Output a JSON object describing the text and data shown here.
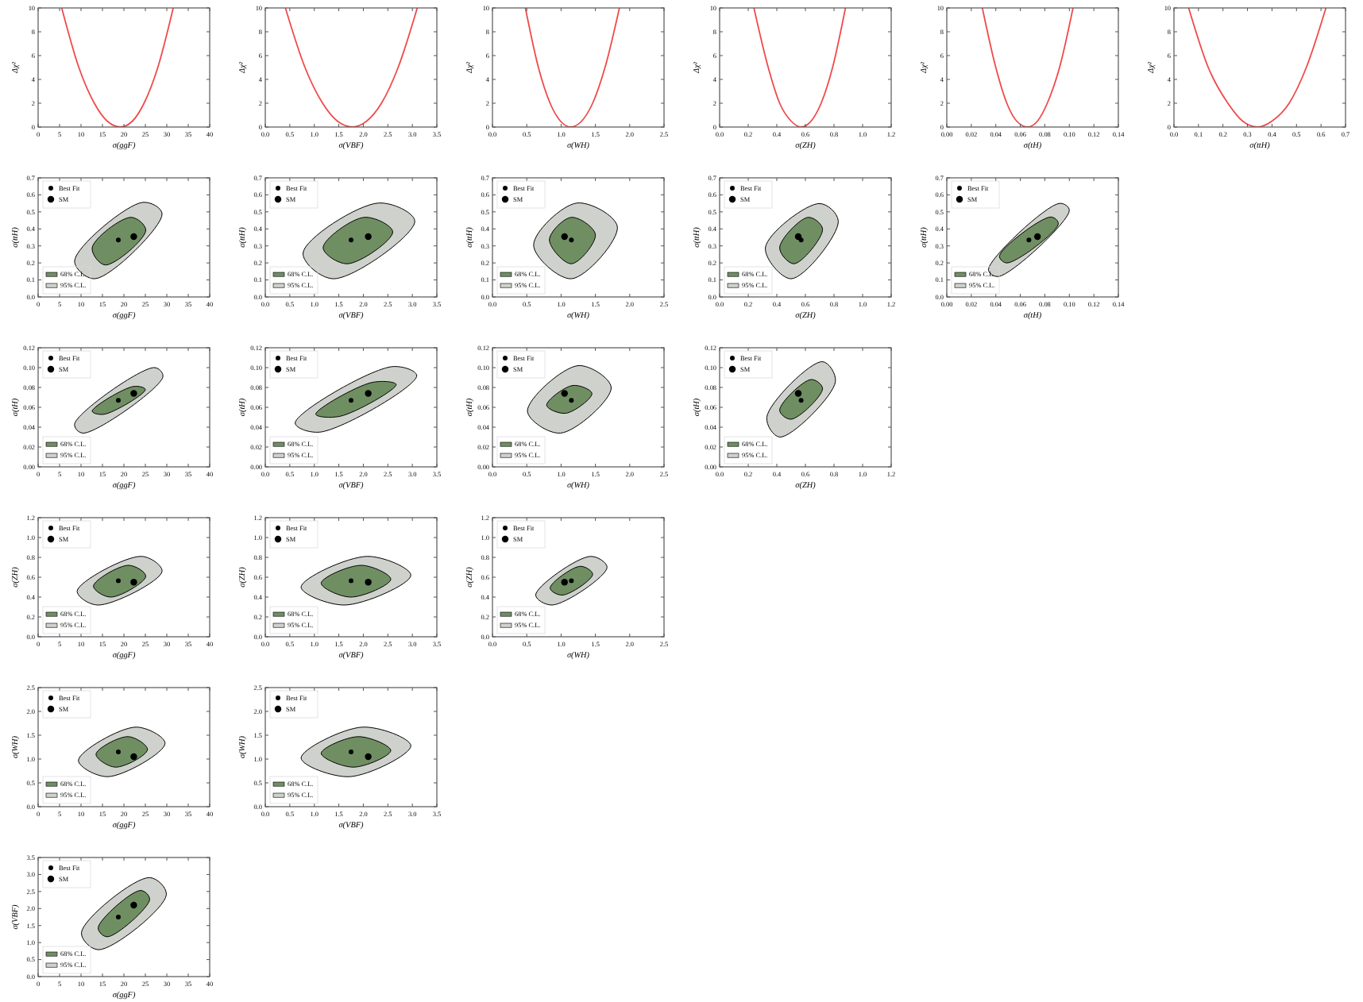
{
  "chart_data": [
    {
      "type": "line",
      "xlabel": "σ(ggF)",
      "ylabel": "Δχ²",
      "xlim": [
        0,
        40
      ],
      "ylim": [
        0,
        10
      ],
      "xticks": [
        0,
        5,
        10,
        15,
        20,
        25,
        30,
        35,
        40
      ],
      "yticks": [
        0,
        2,
        4,
        6,
        8,
        10
      ],
      "series": [
        {
          "color": "#f04a4a",
          "x": [
            5.5,
            9.5,
            13.1,
            16.1,
            19.2,
            22.0,
            24.7,
            27.9,
            31.5
          ],
          "values": [
            10,
            5,
            2,
            0.5,
            0,
            0.5,
            2,
            5,
            10
          ]
        }
      ]
    },
    {
      "type": "line",
      "xlabel": "σ(VBF)",
      "ylabel": "Δχ²",
      "xlim": [
        0,
        3.5
      ],
      "ylim": [
        0,
        10
      ],
      "xticks": [
        {
          "value": 0,
          "label": "0.0"
        },
        {
          "value": 0.5,
          "label": "0.5"
        },
        {
          "value": 1,
          "label": "1.0"
        },
        {
          "value": 1.5,
          "label": "1.5"
        },
        {
          "value": 2,
          "label": "2.0"
        },
        {
          "value": 2.5,
          "label": "2.5"
        },
        {
          "value": 3,
          "label": "3.0"
        },
        {
          "value": 3.5,
          "label": "3.5"
        }
      ],
      "yticks": [
        0,
        2,
        4,
        6,
        8,
        10
      ],
      "series": [
        {
          "color": "#f04a4a",
          "x": [
            0.41,
            0.81,
            1.17,
            1.47,
            1.78,
            2.07,
            2.37,
            2.71,
            3.1
          ],
          "values": [
            10,
            5,
            2,
            0.5,
            0,
            0.5,
            2,
            5,
            10
          ]
        }
      ]
    },
    {
      "type": "line",
      "xlabel": "σ(WH)",
      "ylabel": "Δχ²",
      "xlim": [
        0,
        2.5
      ],
      "ylim": [
        0,
        10
      ],
      "xticks": [
        {
          "value": 0,
          "label": "0.0"
        },
        {
          "value": 0.5,
          "label": "0.5"
        },
        {
          "value": 1,
          "label": "1.0"
        },
        {
          "value": 1.5,
          "label": "1.5"
        },
        {
          "value": 2,
          "label": "2.0"
        },
        {
          "value": 2.5,
          "label": "2.5"
        }
      ],
      "yticks": [
        0,
        2,
        4,
        6,
        8,
        10
      ],
      "series": [
        {
          "color": "#f04a4a",
          "x": [
            0.48,
            0.67,
            0.84,
            0.99,
            1.14,
            1.3,
            1.46,
            1.64,
            1.85
          ],
          "values": [
            10,
            5,
            2,
            0.5,
            0,
            0.5,
            2,
            5,
            10
          ]
        }
      ]
    },
    {
      "type": "line",
      "xlabel": "σ(ZH)",
      "ylabel": "Δχ²",
      "xlim": [
        0,
        1.2
      ],
      "ylim": [
        0,
        10
      ],
      "xticks": [
        {
          "value": 0,
          "label": "0.0"
        },
        {
          "value": 0.2,
          "label": "0.2"
        },
        {
          "value": 0.4,
          "label": "0.4"
        },
        {
          "value": 0.6,
          "label": "0.6"
        },
        {
          "value": 0.8,
          "label": "0.8"
        },
        {
          "value": 1,
          "label": "1.0"
        },
        {
          "value": 1.2,
          "label": "1.2"
        }
      ],
      "yticks": [
        0,
        2,
        4,
        6,
        8,
        10
      ],
      "series": [
        {
          "color": "#f04a4a",
          "x": [
            0.24,
            0.34,
            0.42,
            0.5,
            0.57,
            0.64,
            0.71,
            0.79,
            0.88
          ],
          "values": [
            10,
            5,
            2,
            0.5,
            0,
            0.5,
            2,
            5,
            10
          ]
        }
      ]
    },
    {
      "type": "line",
      "xlabel": "σ(tH)",
      "ylabel": "Δχ²",
      "xlim": [
        0,
        0.14
      ],
      "ylim": [
        0,
        10
      ],
      "xticks": [
        {
          "value": 0,
          "label": "0.00"
        },
        {
          "value": 0.02,
          "label": "0.02"
        },
        {
          "value": 0.04,
          "label": "0.04"
        },
        {
          "value": 0.06,
          "label": "0.06"
        },
        {
          "value": 0.08,
          "label": "0.08"
        },
        {
          "value": 0.1,
          "label": "0.10"
        },
        {
          "value": 0.12,
          "label": "0.12"
        },
        {
          "value": 0.14,
          "label": "0.14"
        }
      ],
      "yticks": [
        0,
        2,
        4,
        6,
        8,
        10
      ],
      "series": [
        {
          "color": "#f04a4a",
          "x": [
            0.029,
            0.04,
            0.049,
            0.057,
            0.066,
            0.074,
            0.082,
            0.092,
            0.103
          ],
          "values": [
            10,
            5,
            2,
            0.5,
            0,
            0.5,
            2,
            5,
            10
          ]
        }
      ]
    },
    {
      "type": "line",
      "xlabel": "σ(ttH)",
      "ylabel": "Δχ²",
      "xlim": [
        0,
        0.7
      ],
      "ylim": [
        0,
        10
      ],
      "xticks": [
        {
          "value": 0,
          "label": "0.0"
        },
        {
          "value": 0.1,
          "label": "0.1"
        },
        {
          "value": 0.2,
          "label": "0.2"
        },
        {
          "value": 0.3,
          "label": "0.3"
        },
        {
          "value": 0.4,
          "label": "0.4"
        },
        {
          "value": 0.5,
          "label": "0.5"
        },
        {
          "value": 0.6,
          "label": "0.6"
        },
        {
          "value": 0.7,
          "label": "0.7"
        }
      ],
      "yticks": [
        0,
        2,
        4,
        6,
        8,
        10
      ],
      "series": [
        {
          "color": "#f04a4a",
          "x": [
            0.06,
            0.14,
            0.22,
            0.28,
            0.34,
            0.4,
            0.47,
            0.54,
            0.62
          ],
          "values": [
            10,
            5,
            2,
            0.5,
            0,
            0.5,
            2,
            5,
            10
          ]
        }
      ]
    },
    {
      "type": "scatter",
      "xlabel": "σ(ggF)",
      "ylabel": "σ(ttH)",
      "xlim": [
        0,
        40
      ],
      "ylim": [
        0,
        0.7
      ],
      "xticks": [
        0,
        5,
        10,
        15,
        20,
        25,
        30,
        35,
        40
      ],
      "yticks": [
        {
          "value": 0,
          "label": "0.0"
        },
        {
          "value": 0.1,
          "label": "0.1"
        },
        {
          "value": 0.2,
          "label": "0.2"
        },
        {
          "value": 0.3,
          "label": "0.3"
        },
        {
          "value": 0.4,
          "label": "0.4"
        },
        {
          "value": 0.5,
          "label": "0.5"
        },
        {
          "value": 0.6,
          "label": "0.6"
        },
        {
          "value": 0.7,
          "label": "0.7"
        }
      ],
      "legend": "left",
      "series": [
        {
          "name": "95% C.L.",
          "type": "area",
          "color": "#cfd1cc",
          "x": [
            8.5,
            13.2,
            28.9,
            24.4
          ],
          "values": [
            0.21,
            0.107,
            0.49,
            0.556
          ]
        },
        {
          "name": "68% C.L.",
          "type": "area",
          "color": "#6f8f62",
          "x": [
            12.6,
            15.6,
            25.1,
            21.7
          ],
          "values": [
            0.289,
            0.188,
            0.392,
            0.468
          ]
        },
        {
          "name": "Best Fit",
          "color": "#000000",
          "x": [
            18.7
          ],
          "values": [
            0.335
          ]
        },
        {
          "name": "SM",
          "color": "#000000",
          "x": [
            22.3
          ],
          "values": [
            0.355
          ]
        }
      ]
    },
    {
      "type": "scatter",
      "xlabel": "σ(VBF)",
      "ylabel": "σ(ttH)",
      "xlim": [
        0,
        3.5
      ],
      "ylim": [
        0,
        0.7
      ],
      "xticks": [
        {
          "value": 0,
          "label": "0.0"
        },
        {
          "value": 0.5,
          "label": "0.5"
        },
        {
          "value": 1,
          "label": "1.0"
        },
        {
          "value": 1.5,
          "label": "1.5"
        },
        {
          "value": 2,
          "label": "2.0"
        },
        {
          "value": 2.5,
          "label": "2.5"
        },
        {
          "value": 3,
          "label": "3.0"
        },
        {
          "value": 3.5,
          "label": "3.5"
        }
      ],
      "yticks": [
        {
          "value": 0,
          "label": "0.0"
        },
        {
          "value": 0.1,
          "label": "0.1"
        },
        {
          "value": 0.2,
          "label": "0.2"
        },
        {
          "value": 0.3,
          "label": "0.3"
        },
        {
          "value": 0.4,
          "label": "0.4"
        },
        {
          "value": 0.5,
          "label": "0.5"
        },
        {
          "value": 0.6,
          "label": "0.6"
        },
        {
          "value": 0.7,
          "label": "0.7"
        }
      ],
      "legend": "left",
      "series": [
        {
          "name": "95% C.L.",
          "type": "area",
          "color": "#cfd1cc",
          "x": [
            0.77,
            1.38,
            3.05,
            2.31
          ],
          "values": [
            0.257,
            0.107,
            0.446,
            0.552
          ]
        },
        {
          "name": "68% C.L.",
          "type": "area",
          "color": "#6f8f62",
          "x": [
            1.18,
            1.67,
            2.6,
            2.02
          ],
          "values": [
            0.289,
            0.195,
            0.383,
            0.468
          ]
        },
        {
          "name": "Best Fit",
          "color": "#000000",
          "x": [
            1.75
          ],
          "values": [
            0.335
          ]
        },
        {
          "name": "SM",
          "color": "#000000",
          "x": [
            2.1
          ],
          "values": [
            0.355
          ]
        }
      ]
    },
    {
      "type": "scatter",
      "xlabel": "σ(WH)",
      "ylabel": "σ(ttH)",
      "xlim": [
        0,
        2.5
      ],
      "ylim": [
        0,
        0.7
      ],
      "xticks": [
        {
          "value": 0,
          "label": "0.0"
        },
        {
          "value": 0.5,
          "label": "0.5"
        },
        {
          "value": 1,
          "label": "1.0"
        },
        {
          "value": 1.5,
          "label": "1.5"
        },
        {
          "value": 2,
          "label": "2.0"
        },
        {
          "value": 2.5,
          "label": "2.5"
        }
      ],
      "yticks": [
        {
          "value": 0,
          "label": "0.0"
        },
        {
          "value": 0.1,
          "label": "0.1"
        },
        {
          "value": 0.2,
          "label": "0.2"
        },
        {
          "value": 0.3,
          "label": "0.3"
        },
        {
          "value": 0.4,
          "label": "0.4"
        },
        {
          "value": 0.5,
          "label": "0.5"
        },
        {
          "value": 0.6,
          "label": "0.6"
        },
        {
          "value": 0.7,
          "label": "0.7"
        }
      ],
      "legend": "left",
      "series": [
        {
          "name": "95% C.L.",
          "type": "area",
          "color": "#cfd1cc",
          "x": [
            0.6,
            1.15,
            1.82,
            1.23
          ],
          "values": [
            0.304,
            0.107,
            0.414,
            0.552
          ]
        },
        {
          "name": "68% C.L.",
          "type": "area",
          "color": "#6f8f62",
          "x": [
            0.83,
            1.15,
            1.5,
            1.15
          ],
          "values": [
            0.336,
            0.195,
            0.367,
            0.468
          ]
        },
        {
          "name": "Best Fit",
          "color": "#000000",
          "x": [
            1.15
          ],
          "values": [
            0.335
          ]
        },
        {
          "name": "SM",
          "color": "#000000",
          "x": [
            1.05
          ],
          "values": [
            0.355
          ]
        }
      ]
    },
    {
      "type": "scatter",
      "xlabel": "σ(ZH)",
      "ylabel": "σ(ttH)",
      "xlim": [
        0,
        1.2
      ],
      "ylim": [
        0,
        0.7
      ],
      "xticks": [
        {
          "value": 0,
          "label": "0.0"
        },
        {
          "value": 0.2,
          "label": "0.2"
        },
        {
          "value": 0.4,
          "label": "0.4"
        },
        {
          "value": 0.6,
          "label": "0.6"
        },
        {
          "value": 0.8,
          "label": "0.8"
        },
        {
          "value": 1,
          "label": "1.0"
        },
        {
          "value": 1.2,
          "label": "1.2"
        }
      ],
      "yticks": [
        {
          "value": 0,
          "label": "0.0"
        },
        {
          "value": 0.1,
          "label": "0.1"
        },
        {
          "value": 0.2,
          "label": "0.2"
        },
        {
          "value": 0.3,
          "label": "0.3"
        },
        {
          "value": 0.4,
          "label": "0.4"
        },
        {
          "value": 0.5,
          "label": "0.5"
        },
        {
          "value": 0.6,
          "label": "0.6"
        },
        {
          "value": 0.7,
          "label": "0.7"
        }
      ],
      "legend": "left",
      "series": [
        {
          "name": "95% C.L.",
          "type": "area",
          "color": "#cfd1cc",
          "x": [
            0.32,
            0.5,
            0.83,
            0.7
          ],
          "values": [
            0.289,
            0.107,
            0.446,
            0.549
          ]
        },
        {
          "name": "68% C.L.",
          "type": "area",
          "color": "#6f8f62",
          "x": [
            0.42,
            0.52,
            0.72,
            0.62
          ],
          "values": [
            0.289,
            0.195,
            0.399,
            0.468
          ]
        },
        {
          "name": "Best Fit",
          "color": "#000000",
          "x": [
            0.57
          ],
          "values": [
            0.335
          ]
        },
        {
          "name": "SM",
          "color": "#000000",
          "x": [
            0.55
          ],
          "values": [
            0.355
          ]
        }
      ]
    },
    {
      "type": "scatter",
      "xlabel": "σ(tH)",
      "ylabel": "σ(ttH)",
      "xlim": [
        0,
        0.14
      ],
      "ylim": [
        0,
        0.7
      ],
      "xticks": [
        {
          "value": 0,
          "label": "0.00"
        },
        {
          "value": 0.02,
          "label": "0.02"
        },
        {
          "value": 0.04,
          "label": "0.04"
        },
        {
          "value": 0.06,
          "label": "0.06"
        },
        {
          "value": 0.08,
          "label": "0.08"
        },
        {
          "value": 0.1,
          "label": "0.10"
        },
        {
          "value": 0.12,
          "label": "0.12"
        },
        {
          "value": 0.14,
          "label": "0.14"
        }
      ],
      "yticks": [
        {
          "value": 0,
          "label": "0.0"
        },
        {
          "value": 0.1,
          "label": "0.1"
        },
        {
          "value": 0.2,
          "label": "0.2"
        },
        {
          "value": 0.3,
          "label": "0.3"
        },
        {
          "value": 0.4,
          "label": "0.4"
        },
        {
          "value": 0.5,
          "label": "0.5"
        },
        {
          "value": 0.6,
          "label": "0.6"
        },
        {
          "value": 0.7,
          "label": "0.7"
        }
      ],
      "legend": "left",
      "series": [
        {
          "name": "95% C.L.",
          "type": "area",
          "color": "#cfd1cc",
          "x": [
            0.034,
            0.042,
            0.1,
            0.092
          ],
          "values": [
            0.16,
            0.12,
            0.51,
            0.55
          ]
        },
        {
          "name": "68% C.L.",
          "type": "area",
          "color": "#6f8f62",
          "x": [
            0.043,
            0.049,
            0.091,
            0.085
          ],
          "values": [
            0.24,
            0.2,
            0.43,
            0.47
          ]
        },
        {
          "name": "Best Fit",
          "color": "#000000",
          "x": [
            0.067
          ],
          "values": [
            0.335
          ]
        },
        {
          "name": "SM",
          "color": "#000000",
          "x": [
            0.074
          ],
          "values": [
            0.355
          ]
        }
      ]
    },
    {
      "type": "scatter",
      "xlabel": "σ(ggF)",
      "ylabel": "σ(tH)",
      "xlim": [
        0,
        40
      ],
      "ylim": [
        0,
        0.12
      ],
      "xticks": [
        0,
        5,
        10,
        15,
        20,
        25,
        30,
        35,
        40
      ],
      "yticks": [
        {
          "value": 0,
          "label": "0.00"
        },
        {
          "value": 0.02,
          "label": "0.02"
        },
        {
          "value": 0.04,
          "label": "0.04"
        },
        {
          "value": 0.06,
          "label": "0.06"
        },
        {
          "value": 0.08,
          "label": "0.08"
        },
        {
          "value": 0.1,
          "label": "0.10"
        },
        {
          "value": 0.12,
          "label": "0.12"
        }
      ],
      "legend": "left",
      "series": [
        {
          "name": "95% C.L.",
          "type": "area",
          "color": "#cfd1cc",
          "x": [
            8.5,
            10.4,
            29.1,
            27.2
          ],
          "values": [
            0.043,
            0.034,
            0.091,
            0.1
          ]
        },
        {
          "name": "68% C.L.",
          "type": "area",
          "color": "#6f8f62",
          "x": [
            12.6,
            15.4,
            25.0,
            22.2
          ],
          "values": [
            0.056,
            0.053,
            0.078,
            0.081
          ]
        },
        {
          "name": "Best Fit",
          "color": "#000000",
          "x": [
            18.7
          ],
          "values": [
            0.067
          ]
        },
        {
          "name": "SM",
          "color": "#000000",
          "x": [
            22.3
          ],
          "values": [
            0.074
          ]
        }
      ]
    },
    {
      "type": "scatter",
      "xlabel": "σ(VBF)",
      "ylabel": "σ(tH)",
      "xlim": [
        0,
        3.5
      ],
      "ylim": [
        0,
        0.12
      ],
      "xticks": [
        {
          "value": 0,
          "label": "0.0"
        },
        {
          "value": 0.5,
          "label": "0.5"
        },
        {
          "value": 1,
          "label": "1.0"
        },
        {
          "value": 1.5,
          "label": "1.5"
        },
        {
          "value": 2,
          "label": "2.0"
        },
        {
          "value": 2.5,
          "label": "2.5"
        },
        {
          "value": 3,
          "label": "3.0"
        },
        {
          "value": 3.5,
          "label": "3.5"
        }
      ],
      "yticks": [
        {
          "value": 0,
          "label": "0.00"
        },
        {
          "value": 0.02,
          "label": "0.02"
        },
        {
          "value": 0.04,
          "label": "0.04"
        },
        {
          "value": 0.06,
          "label": "0.06"
        },
        {
          "value": 0.08,
          "label": "0.08"
        },
        {
          "value": 0.1,
          "label": "0.10"
        },
        {
          "value": 0.12,
          "label": "0.12"
        }
      ],
      "legend": "left",
      "series": [
        {
          "name": "95% C.L.",
          "type": "area",
          "color": "#cfd1cc",
          "x": [
            0.61,
            1.11,
            3.09,
            2.59
          ],
          "values": [
            0.044,
            0.035,
            0.092,
            0.101
          ]
        },
        {
          "name": "68% C.L.",
          "type": "area",
          "color": "#6f8f62",
          "x": [
            1.03,
            1.53,
            2.67,
            2.17
          ],
          "values": [
            0.053,
            0.051,
            0.083,
            0.085
          ]
        },
        {
          "name": "Best Fit",
          "color": "#000000",
          "x": [
            1.75
          ],
          "values": [
            0.067
          ]
        },
        {
          "name": "SM",
          "color": "#000000",
          "x": [
            2.1
          ],
          "values": [
            0.074
          ]
        }
      ]
    },
    {
      "type": "scatter",
      "xlabel": "σ(WH)",
      "ylabel": "σ(tH)",
      "xlim": [
        0,
        2.5
      ],
      "ylim": [
        0,
        0.12
      ],
      "xticks": [
        {
          "value": 0,
          "label": "0.0"
        },
        {
          "value": 0.5,
          "label": "0.5"
        },
        {
          "value": 1,
          "label": "1.0"
        },
        {
          "value": 1.5,
          "label": "1.5"
        },
        {
          "value": 2,
          "label": "2.0"
        },
        {
          "value": 2.5,
          "label": "2.5"
        }
      ],
      "yticks": [
        {
          "value": 0,
          "label": "0.00"
        },
        {
          "value": 0.02,
          "label": "0.02"
        },
        {
          "value": 0.04,
          "label": "0.04"
        },
        {
          "value": 0.06,
          "label": "0.06"
        },
        {
          "value": 0.08,
          "label": "0.08"
        },
        {
          "value": 0.1,
          "label": "0.10"
        },
        {
          "value": 0.12,
          "label": "0.12"
        }
      ],
      "legend": "left",
      "series": [
        {
          "name": "95% C.L.",
          "type": "area",
          "color": "#cfd1cc",
          "x": [
            0.51,
            0.99,
            1.73,
            1.25
          ],
          "values": [
            0.056,
            0.034,
            0.08,
            0.102
          ]
        },
        {
          "name": "68% C.L.",
          "type": "area",
          "color": "#6f8f62",
          "x": [
            0.79,
            1.07,
            1.45,
            1.17
          ],
          "values": [
            0.062,
            0.054,
            0.074,
            0.082
          ]
        },
        {
          "name": "Best Fit",
          "color": "#000000",
          "x": [
            1.15
          ],
          "values": [
            0.067
          ]
        },
        {
          "name": "SM",
          "color": "#000000",
          "x": [
            1.05
          ],
          "values": [
            0.074
          ]
        }
      ]
    },
    {
      "type": "scatter",
      "xlabel": "σ(ZH)",
      "ylabel": "σ(tH)",
      "xlim": [
        0,
        1.2
      ],
      "ylim": [
        0,
        0.12
      ],
      "xticks": [
        {
          "value": 0,
          "label": "0.0"
        },
        {
          "value": 0.2,
          "label": "0.2"
        },
        {
          "value": 0.4,
          "label": "0.4"
        },
        {
          "value": 0.6,
          "label": "0.6"
        },
        {
          "value": 0.8,
          "label": "0.8"
        },
        {
          "value": 1,
          "label": "1.0"
        },
        {
          "value": 1.2,
          "label": "1.2"
        }
      ],
      "yticks": [
        {
          "value": 0,
          "label": "0.00"
        },
        {
          "value": 0.02,
          "label": "0.02"
        },
        {
          "value": 0.04,
          "label": "0.04"
        },
        {
          "value": 0.06,
          "label": "0.06"
        },
        {
          "value": 0.08,
          "label": "0.08"
        },
        {
          "value": 0.1,
          "label": "0.10"
        },
        {
          "value": 0.12,
          "label": "0.12"
        }
      ],
      "legend": "left",
      "series": [
        {
          "name": "95% C.L.",
          "type": "area",
          "color": "#cfd1cc",
          "x": [
            0.33,
            0.42,
            0.81,
            0.72
          ],
          "values": [
            0.05,
            0.03,
            0.086,
            0.106
          ]
        },
        {
          "name": "68% C.L.",
          "type": "area",
          "color": "#6f8f62",
          "x": [
            0.42,
            0.5,
            0.72,
            0.64
          ],
          "values": [
            0.057,
            0.048,
            0.079,
            0.088
          ]
        },
        {
          "name": "Best Fit",
          "color": "#000000",
          "x": [
            0.57
          ],
          "values": [
            0.067
          ]
        },
        {
          "name": "SM",
          "color": "#000000",
          "x": [
            0.55
          ],
          "values": [
            0.074
          ]
        }
      ]
    },
    {
      "type": "scatter",
      "xlabel": "σ(ggF)",
      "ylabel": "σ(ZH)",
      "xlim": [
        0,
        40
      ],
      "ylim": [
        0,
        1.2
      ],
      "xticks": [
        0,
        5,
        10,
        15,
        20,
        25,
        30,
        35,
        40
      ],
      "yticks": [
        {
          "value": 0,
          "label": "0.0"
        },
        {
          "value": 0.2,
          "label": "0.2"
        },
        {
          "value": 0.4,
          "label": "0.4"
        },
        {
          "value": 0.6,
          "label": "0.6"
        },
        {
          "value": 0.8,
          "label": "0.8"
        },
        {
          "value": 1,
          "label": "1.0"
        },
        {
          "value": 1.2,
          "label": "1.2"
        }
      ],
      "legend": "left",
      "series": [
        {
          "name": "95% C.L.",
          "type": "area",
          "color": "#cfd1cc",
          "x": [
            9.1,
            13.8,
            28.9,
            24.2
          ],
          "values": [
            0.46,
            0.32,
            0.66,
            0.81
          ]
        },
        {
          "name": "68% C.L.",
          "type": "area",
          "color": "#6f8f62",
          "x": [
            12.9,
            16.9,
            25.1,
            21.1
          ],
          "values": [
            0.51,
            0.4,
            0.61,
            0.72
          ]
        },
        {
          "name": "Best Fit",
          "color": "#000000",
          "x": [
            18.7
          ],
          "values": [
            0.565
          ]
        },
        {
          "name": "SM",
          "color": "#000000",
          "x": [
            22.3
          ],
          "values": [
            0.55
          ]
        }
      ]
    },
    {
      "type": "scatter",
      "xlabel": "σ(VBF)",
      "ylabel": "σ(ZH)",
      "xlim": [
        0,
        3.5
      ],
      "ylim": [
        0,
        1.2
      ],
      "xticks": [
        {
          "value": 0,
          "label": "0.0"
        },
        {
          "value": 0.5,
          "label": "0.5"
        },
        {
          "value": 1,
          "label": "1.0"
        },
        {
          "value": 1.5,
          "label": "1.5"
        },
        {
          "value": 2,
          "label": "2.0"
        },
        {
          "value": 2.5,
          "label": "2.5"
        },
        {
          "value": 3,
          "label": "3.0"
        },
        {
          "value": 3.5,
          "label": "3.5"
        }
      ],
      "yticks": [
        {
          "value": 0,
          "label": "0.0"
        },
        {
          "value": 0.2,
          "label": "0.2"
        },
        {
          "value": 0.4,
          "label": "0.4"
        },
        {
          "value": 0.6,
          "label": "0.6"
        },
        {
          "value": 0.8,
          "label": "0.8"
        },
        {
          "value": 1,
          "label": "1.0"
        },
        {
          "value": 1.2,
          "label": "1.2"
        }
      ],
      "legend": "left",
      "series": [
        {
          "name": "95% C.L.",
          "type": "area",
          "color": "#cfd1cc",
          "x": [
            0.73,
            1.62,
            2.97,
            2.08
          ],
          "values": [
            0.5,
            0.32,
            0.62,
            0.81
          ]
        },
        {
          "name": "68% C.L.",
          "type": "area",
          "color": "#6f8f62",
          "x": [
            1.14,
            1.74,
            2.56,
            1.96
          ],
          "values": [
            0.54,
            0.4,
            0.58,
            0.72
          ]
        },
        {
          "name": "Best Fit",
          "color": "#000000",
          "x": [
            1.75
          ],
          "values": [
            0.565
          ]
        },
        {
          "name": "SM",
          "color": "#000000",
          "x": [
            2.1
          ],
          "values": [
            0.55
          ]
        }
      ]
    },
    {
      "type": "scatter",
      "xlabel": "σ(WH)",
      "ylabel": "σ(ZH)",
      "xlim": [
        0,
        2.5
      ],
      "ylim": [
        0,
        1.2
      ],
      "xticks": [
        {
          "value": 0,
          "label": "0.0"
        },
        {
          "value": 0.5,
          "label": "0.5"
        },
        {
          "value": 1,
          "label": "1.0"
        },
        {
          "value": 1.5,
          "label": "1.5"
        },
        {
          "value": 2,
          "label": "2.0"
        },
        {
          "value": 2.5,
          "label": "2.5"
        }
      ],
      "yticks": [
        {
          "value": 0,
          "label": "0.0"
        },
        {
          "value": 0.2,
          "label": "0.2"
        },
        {
          "value": 0.4,
          "label": "0.4"
        },
        {
          "value": 0.6,
          "label": "0.6"
        },
        {
          "value": 0.8,
          "label": "0.8"
        },
        {
          "value": 1,
          "label": "1.0"
        },
        {
          "value": 1.2,
          "label": "1.2"
        }
      ],
      "legend": "left",
      "series": [
        {
          "name": "95% C.L.",
          "type": "area",
          "color": "#cfd1cc",
          "x": [
            0.63,
            0.87,
            1.67,
            1.43
          ],
          "values": [
            0.42,
            0.32,
            0.7,
            0.81
          ]
        },
        {
          "name": "68% C.L.",
          "type": "area",
          "color": "#6f8f62",
          "x": [
            0.84,
            1.02,
            1.46,
            1.28
          ],
          "values": [
            0.49,
            0.42,
            0.63,
            0.71
          ]
        },
        {
          "name": "Best Fit",
          "color": "#000000",
          "x": [
            1.15
          ],
          "values": [
            0.565
          ]
        },
        {
          "name": "SM",
          "color": "#000000",
          "x": [
            1.05
          ],
          "values": [
            0.55
          ]
        }
      ]
    },
    {
      "type": "scatter",
      "xlabel": "σ(ggF)",
      "ylabel": "σ(WH)",
      "xlim": [
        0,
        40
      ],
      "ylim": [
        0,
        2.5
      ],
      "xticks": [
        0,
        5,
        10,
        15,
        20,
        25,
        30,
        35,
        40
      ],
      "yticks": [
        {
          "value": 0,
          "label": "0.0"
        },
        {
          "value": 0.5,
          "label": "0.5"
        },
        {
          "value": 1,
          "label": "1.0"
        },
        {
          "value": 1.5,
          "label": "1.5"
        },
        {
          "value": 2,
          "label": "2.0"
        },
        {
          "value": 2.5,
          "label": "2.5"
        }
      ],
      "legend": "left",
      "series": [
        {
          "name": "95% C.L.",
          "type": "area",
          "color": "#cfd1cc",
          "x": [
            9.4,
            16.2,
            29.6,
            22.8
          ],
          "values": [
            0.97,
            0.63,
            1.33,
            1.67
          ]
        },
        {
          "name": "68% C.L.",
          "type": "area",
          "color": "#6f8f62",
          "x": [
            13.5,
            18.0,
            25.5,
            21.0
          ],
          "values": [
            1.1,
            0.83,
            1.2,
            1.47
          ]
        },
        {
          "name": "Best Fit",
          "color": "#000000",
          "x": [
            18.7
          ],
          "values": [
            1.15
          ]
        },
        {
          "name": "SM",
          "color": "#000000",
          "x": [
            22.3
          ],
          "values": [
            1.05
          ]
        }
      ]
    },
    {
      "type": "scatter",
      "xlabel": "σ(VBF)",
      "ylabel": "σ(WH)",
      "xlim": [
        0,
        3.5
      ],
      "ylim": [
        0,
        2.5
      ],
      "xticks": [
        {
          "value": 0,
          "label": "0.0"
        },
        {
          "value": 0.5,
          "label": "0.5"
        },
        {
          "value": 1,
          "label": "1.0"
        },
        {
          "value": 1.5,
          "label": "1.5"
        },
        {
          "value": 2,
          "label": "2.0"
        },
        {
          "value": 2.5,
          "label": "2.5"
        },
        {
          "value": 3,
          "label": "3.0"
        },
        {
          "value": 3.5,
          "label": "3.5"
        }
      ],
      "yticks": [
        {
          "value": 0,
          "label": "0.0"
        },
        {
          "value": 0.5,
          "label": "0.5"
        },
        {
          "value": 1,
          "label": "1.0"
        },
        {
          "value": 1.5,
          "label": "1.5"
        },
        {
          "value": 2,
          "label": "2.0"
        },
        {
          "value": 2.5,
          "label": "2.5"
        }
      ],
      "legend": "left",
      "series": [
        {
          "name": "95% C.L.",
          "type": "area",
          "color": "#cfd1cc",
          "x": [
            0.73,
            1.72,
            2.97,
            1.98
          ],
          "values": [
            1.02,
            0.63,
            1.28,
            1.67
          ]
        },
        {
          "name": "68% C.L.",
          "type": "area",
          "color": "#6f8f62",
          "x": [
            1.14,
            1.8,
            2.56,
            1.9
          ],
          "values": [
            1.12,
            0.83,
            1.18,
            1.47
          ]
        },
        {
          "name": "Best Fit",
          "color": "#000000",
          "x": [
            1.75
          ],
          "values": [
            1.15
          ]
        },
        {
          "name": "SM",
          "color": "#000000",
          "x": [
            2.1
          ],
          "values": [
            1.05
          ]
        }
      ]
    },
    {
      "type": "scatter",
      "xlabel": "σ(ggF)",
      "ylabel": "σ(VBF)",
      "xlim": [
        0,
        40
      ],
      "ylim": [
        0,
        3.5
      ],
      "xticks": [
        0,
        5,
        10,
        15,
        20,
        25,
        30,
        35,
        40
      ],
      "yticks": [
        {
          "value": 0,
          "label": "0.0"
        },
        {
          "value": 0.5,
          "label": "0.5"
        },
        {
          "value": 1,
          "label": "1.0"
        },
        {
          "value": 1.5,
          "label": "1.5"
        },
        {
          "value": 2,
          "label": "2.0"
        },
        {
          "value": 2.5,
          "label": "2.5"
        },
        {
          "value": 3,
          "label": "3.0"
        },
        {
          "value": 3.5,
          "label": "3.5"
        }
      ],
      "legend": "left",
      "series": [
        {
          "name": "95% C.L.",
          "type": "area",
          "color": "#cfd1cc",
          "x": [
            10.1,
            14.0,
            29.9,
            26.0
          ],
          "values": [
            1.29,
            0.79,
            2.41,
            2.91
          ]
        },
        {
          "name": "68% C.L.",
          "type": "area",
          "color": "#6f8f62",
          "x": [
            14.0,
            16.1,
            26.0,
            23.9
          ],
          "values": [
            1.43,
            1.17,
            2.27,
            2.53
          ]
        },
        {
          "name": "Best Fit",
          "color": "#000000",
          "x": [
            18.7
          ],
          "values": [
            1.75
          ]
        },
        {
          "name": "SM",
          "color": "#000000",
          "x": [
            22.3
          ],
          "values": [
            2.1
          ]
        }
      ]
    }
  ]
}
